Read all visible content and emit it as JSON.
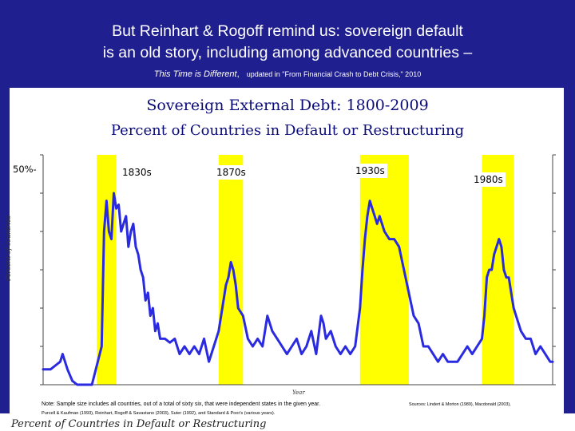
{
  "slide": {
    "title_line1": "But Reinhart & Rogoff remind us: sovereign default",
    "title_line2": "is an old story, including among advanced countries –",
    "book_title": "This Time is Different",
    "book_sep": ",",
    "update_note": "updated in \"From Financial Crash to Debt Crisis,\" 2010"
  },
  "chart_data": {
    "type": "line",
    "title": "Sovereign External Debt: 1800-2009",
    "subtitle": "Percent of Countries in Default or Restructuring",
    "ylabel": "Percent of countries",
    "xlabel": "Year",
    "y_tick_label": "50%-",
    "xlim": [
      1800,
      2009
    ],
    "ylim": [
      0,
      60
    ],
    "grid": false,
    "highlight_periods": [
      {
        "label": "1830s",
        "start": 1822,
        "end": 1830
      },
      {
        "label": "1870s",
        "start": 1872,
        "end": 1882
      },
      {
        "label": "1930s",
        "start": 1930,
        "end": 1950
      },
      {
        "label": "1980s",
        "start": 1980,
        "end": 1993
      }
    ],
    "series": [
      {
        "color": "#2a2ae0",
        "x": [
          1800,
          1803,
          1805,
          1807,
          1808,
          1810,
          1812,
          1814,
          1816,
          1818,
          1820,
          1822,
          1824,
          1825,
          1826,
          1827,
          1828,
          1829,
          1830,
          1831,
          1832,
          1833,
          1834,
          1835,
          1836,
          1837,
          1838,
          1839,
          1840,
          1841,
          1842,
          1843,
          1844,
          1845,
          1846,
          1847,
          1848,
          1850,
          1852,
          1854,
          1856,
          1858,
          1860,
          1862,
          1864,
          1866,
          1868,
          1870,
          1872,
          1874,
          1875,
          1876,
          1877,
          1878,
          1879,
          1880,
          1882,
          1884,
          1886,
          1888,
          1890,
          1891,
          1892,
          1894,
          1896,
          1898,
          1900,
          1902,
          1904,
          1906,
          1908,
          1910,
          1912,
          1914,
          1915,
          1916,
          1918,
          1920,
          1922,
          1924,
          1926,
          1928,
          1930,
          1931,
          1932,
          1933,
          1934,
          1935,
          1936,
          1937,
          1938,
          1940,
          1942,
          1944,
          1946,
          1948,
          1950,
          1952,
          1954,
          1956,
          1958,
          1960,
          1962,
          1964,
          1966,
          1968,
          1970,
          1972,
          1974,
          1976,
          1978,
          1980,
          1981,
          1982,
          1983,
          1984,
          1985,
          1986,
          1987,
          1988,
          1989,
          1990,
          1991,
          1992,
          1993,
          1994,
          1996,
          1998,
          2000,
          2002,
          2004,
          2006,
          2008,
          2009
        ],
        "values": [
          4,
          4,
          5,
          6,
          8,
          4,
          1,
          0,
          0,
          0,
          0,
          5,
          10,
          40,
          48,
          40,
          38,
          50,
          46,
          47,
          40,
          42,
          44,
          36,
          40,
          42,
          36,
          34,
          30,
          28,
          22,
          24,
          18,
          20,
          14,
          16,
          12,
          12,
          11,
          12,
          8,
          10,
          8,
          10,
          8,
          12,
          6,
          10,
          14,
          22,
          26,
          28,
          32,
          30,
          26,
          20,
          18,
          12,
          10,
          12,
          10,
          14,
          18,
          14,
          12,
          10,
          8,
          10,
          12,
          8,
          10,
          14,
          8,
          18,
          16,
          12,
          14,
          10,
          8,
          10,
          8,
          10,
          20,
          30,
          38,
          44,
          48,
          46,
          44,
          42,
          44,
          40,
          38,
          38,
          36,
          30,
          24,
          18,
          16,
          10,
          10,
          8,
          6,
          8,
          6,
          6,
          6,
          8,
          10,
          8,
          10,
          12,
          18,
          28,
          30,
          30,
          34,
          36,
          38,
          36,
          30,
          28,
          28,
          24,
          20,
          18,
          14,
          12,
          12,
          8,
          10,
          8,
          6,
          6
        ]
      }
    ],
    "note_line1": "Note: Sample size includes all countries, out of a total of sixty six, that were independent states in the given year.",
    "note_line2": "Purcell & Kaufman (1993), Reinhart, Rogoff & Savastano (2003), Suter (1992), and Standard & Poor's (various years).",
    "sources": "Sources: Lindert & Morton (1989), Macdonald (2003),",
    "bottom_caption": "Percent of Countries in Default or Restructuring"
  }
}
